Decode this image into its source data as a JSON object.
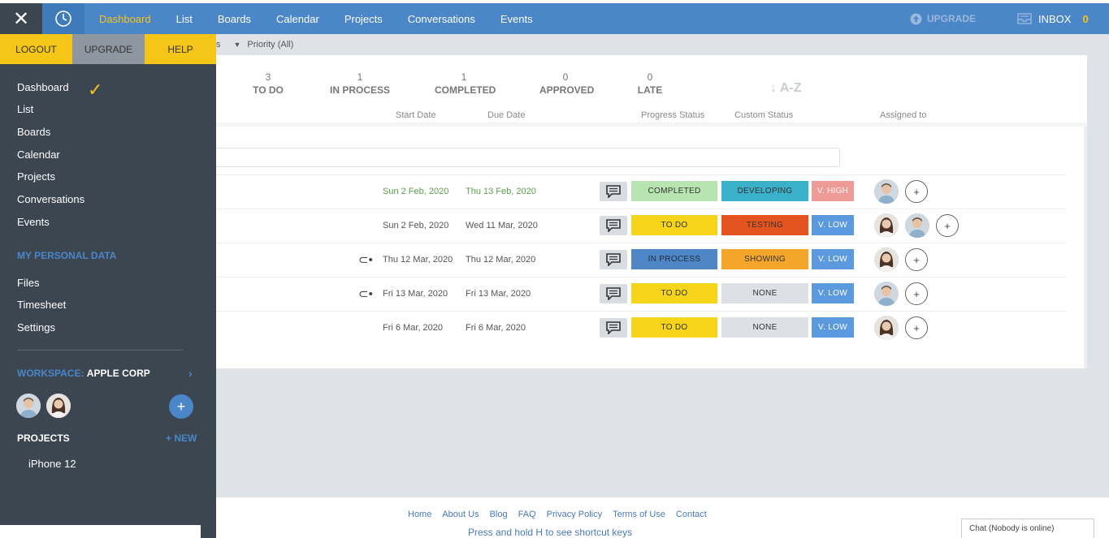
{
  "topnav": {
    "links": [
      "Dashboard",
      "List",
      "Boards",
      "Calendar",
      "Projects",
      "Conversations",
      "Events"
    ],
    "active": "Dashboard",
    "upgrade_label": "UPGRADE",
    "inbox_label": "INBOX",
    "inbox_count": "0"
  },
  "sidebar": {
    "logout": "LOGOUT",
    "upgrade": "UPGRADE",
    "help": "HELP",
    "nav": [
      "Dashboard",
      "List",
      "Boards",
      "Calendar",
      "Projects",
      "Conversations",
      "Events"
    ],
    "personal_section": "MY PERSONAL DATA",
    "personal": [
      "Files",
      "Timesheet",
      "Settings"
    ],
    "workspace_label": "WORKSPACE:",
    "workspace_name": "APPLE CORP",
    "add_member": "+",
    "projects_label": "PROJECTS",
    "projects_new": "+ NEW",
    "projects": [
      "iPhone 12"
    ]
  },
  "filter": {
    "partial": "s",
    "priority": "Priority (All)"
  },
  "stats": [
    {
      "count": "3",
      "label": "TO DO"
    },
    {
      "count": "1",
      "label": "IN PROCESS"
    },
    {
      "count": "1",
      "label": "COMPLETED"
    },
    {
      "count": "0",
      "label": "APPROVED"
    },
    {
      "count": "0",
      "label": "LATE"
    }
  ],
  "sort_label": "A-Z",
  "columns": {
    "start": "Start Date",
    "due": "Due Date",
    "progress": "Progress Status",
    "custom": "Custom Status",
    "assigned": "Assigned to"
  },
  "colors": {
    "completed": "#b7e4b0",
    "todo": "#f5d419",
    "inprocess": "#4f86c6",
    "developing": "#3bb0c9",
    "testing": "#e5531f",
    "showing": "#f4a62a",
    "none": "#dde1e5",
    "vhigh": "#ee9a96",
    "vlow": "#5c9ae0"
  },
  "rows": [
    {
      "start": "Sun 2 Feb, 2020",
      "due": "Thu 13 Feb, 2020",
      "progress": "COMPLETED",
      "custom": "DEVELOPING",
      "priority": "V. HIGH",
      "dep": false
    },
    {
      "start": "Sun 2 Feb, 2020",
      "due": "Wed 11 Mar, 2020",
      "progress": "TO DO",
      "custom": "TESTING",
      "priority": "V. LOW",
      "dep": false
    },
    {
      "start": "Thu 12 Mar, 2020",
      "due": "Thu 12 Mar, 2020",
      "progress": "IN PROCESS",
      "custom": "SHOWING",
      "priority": "V. LOW",
      "dep": true
    },
    {
      "start": "Fri 13 Mar, 2020",
      "due": "Fri 13 Mar, 2020",
      "progress": "TO DO",
      "custom": "NONE",
      "priority": "V. LOW",
      "dep": true
    },
    {
      "start": "Fri 6 Mar, 2020",
      "due": "Fri 6 Mar, 2020",
      "progress": "TO DO",
      "custom": "NONE",
      "priority": "V. LOW",
      "dep": false
    }
  ],
  "footer": {
    "links": [
      "Home",
      "About Us",
      "Blog",
      "FAQ",
      "Privacy Policy",
      "Terms of Use",
      "Contact"
    ],
    "hint": "Press and hold H to see shortcut keys"
  },
  "chat": "Chat (Nobody is online)"
}
